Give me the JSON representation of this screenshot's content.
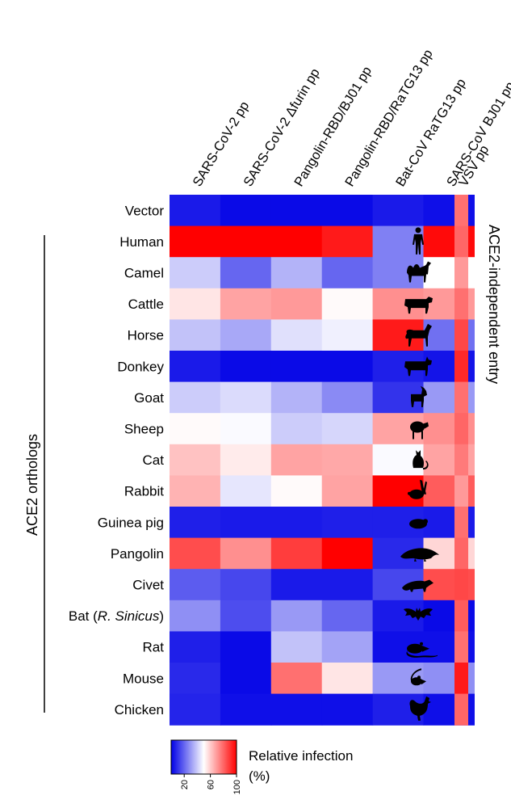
{
  "chart_data": {
    "type": "heatmap",
    "title": "",
    "colormap": {
      "low_color": "#0000e6",
      "mid_color": "#ffffff",
      "high_color": "#ff0000",
      "range": [
        0,
        100
      ]
    },
    "columns": [
      "SARS-CoV-2 pp",
      "SARS-CoV-2 Δfurin pp",
      "Pangolin-RBD/BJ01 pp",
      "Pangolin-RBD/RaTG13 pp",
      "Bat-CoV RaTG13 pp",
      "SARS-CoV BJ01 pp"
    ],
    "control_column": "VSV pp",
    "rows": [
      {
        "label": "Vector",
        "italic_part": "",
        "icon": "",
        "values": [
          5,
          2,
          2,
          2,
          5,
          3
        ],
        "vsv": 78
      },
      {
        "label": "Human",
        "italic_part": "",
        "icon": "human-icon",
        "values": [
          100,
          100,
          100,
          95,
          25,
          98
        ],
        "vsv": 80
      },
      {
        "label": "Camel",
        "italic_part": "",
        "icon": "camel-icon",
        "values": [
          40,
          20,
          35,
          20,
          25,
          50
        ],
        "vsv": 70
      },
      {
        "label": "Cattle",
        "italic_part": "",
        "icon": "cattle-icon",
        "values": [
          55,
          68,
          70,
          51,
          72,
          70
        ],
        "vsv": 78
      },
      {
        "label": "Horse",
        "italic_part": "",
        "icon": "horse-icon",
        "values": [
          38,
          33,
          44,
          47,
          95,
          22
        ],
        "vsv": 86
      },
      {
        "label": "Donkey",
        "italic_part": "",
        "icon": "donkey-icon",
        "values": [
          5,
          2,
          2,
          2,
          6,
          4
        ],
        "vsv": 92
      },
      {
        "label": "Goat",
        "italic_part": "",
        "icon": "goat-icon",
        "values": [
          40,
          43,
          35,
          27,
          10,
          30
        ],
        "vsv": 78
      },
      {
        "label": "Sheep",
        "italic_part": "",
        "icon": "sheep-icon",
        "values": [
          51,
          49,
          40,
          42,
          68,
          72
        ],
        "vsv": 80
      },
      {
        "label": "Cat",
        "italic_part": "",
        "icon": "cat-icon",
        "values": [
          62,
          54,
          68,
          67,
          49,
          68
        ],
        "vsv": 76
      },
      {
        "label": "Rabbit",
        "italic_part": "",
        "icon": "rabbit-icon",
        "values": [
          65,
          45,
          51,
          68,
          100,
          82
        ],
        "vsv": 70
      },
      {
        "label": "Guinea pig",
        "italic_part": "",
        "icon": "guinea-pig-icon",
        "values": [
          6,
          5,
          5,
          6,
          6,
          5
        ],
        "vsv": 78
      },
      {
        "label": "Pangolin",
        "italic_part": "",
        "icon": "pangolin-icon",
        "values": [
          85,
          72,
          88,
          100,
          8,
          58
        ],
        "vsv": 80
      },
      {
        "label": "Civet",
        "italic_part": "",
        "icon": "civet-icon",
        "values": [
          18,
          14,
          5,
          5,
          14,
          85
        ],
        "vsv": 86
      },
      {
        "label": "Bat (",
        "italic_part": "R. Sinicus",
        "label_end": ")",
        "icon": "bat-icon",
        "values": [
          28,
          15,
          30,
          20,
          5,
          2
        ],
        "vsv": 82
      },
      {
        "label": "Rat",
        "italic_part": "",
        "icon": "rat-icon",
        "values": [
          6,
          2,
          38,
          32,
          3,
          3
        ],
        "vsv": 78
      },
      {
        "label": "Mouse",
        "italic_part": "",
        "icon": "mouse-icon",
        "values": [
          8,
          2,
          78,
          55,
          30,
          28
        ],
        "vsv": 95
      },
      {
        "label": "Chicken",
        "italic_part": "",
        "icon": "chicken-icon",
        "values": [
          7,
          3,
          3,
          3,
          6,
          3
        ],
        "vsv": 80
      }
    ],
    "group_label": "ACE2 orthologs",
    "side_label": "ACE2-independent entry",
    "legend": {
      "title_line1": "Relative infection",
      "title_line2": "(%)",
      "ticks": [
        "20",
        "60",
        "100"
      ],
      "tick_values": [
        20,
        60,
        100
      ]
    }
  }
}
